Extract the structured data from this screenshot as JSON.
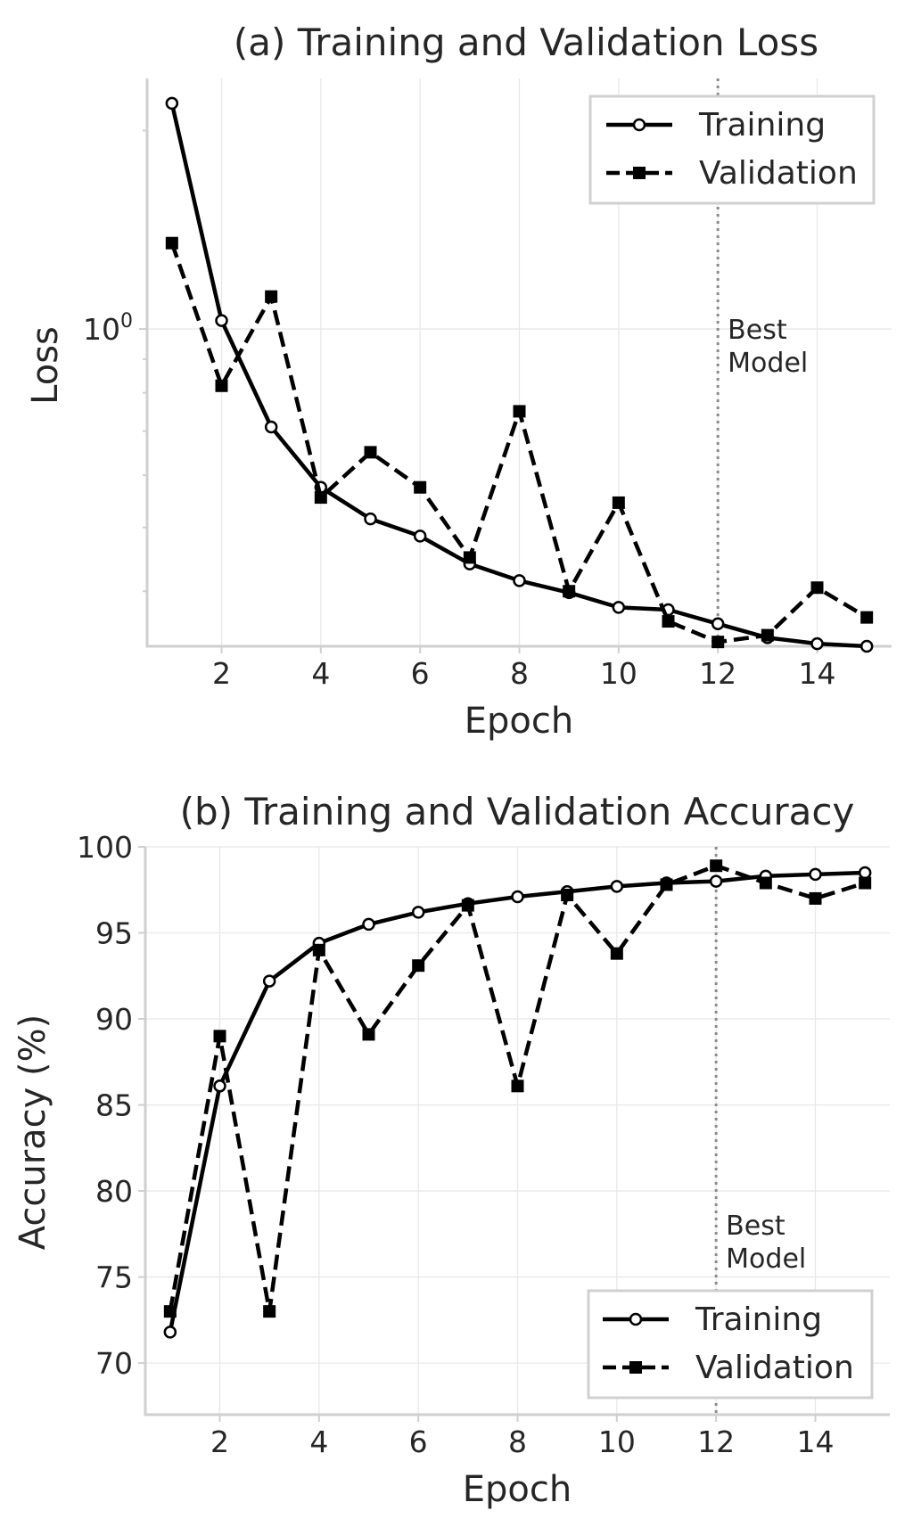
{
  "chart_data": [
    {
      "type": "line",
      "title": "(a) Training and Validation Loss",
      "xlabel": "Epoch",
      "ylabel": "Loss",
      "yscale": "log",
      "x": [
        1,
        2,
        3,
        4,
        5,
        6,
        7,
        8,
        9,
        10,
        11,
        12,
        13,
        14,
        15
      ],
      "xlim": [
        0.5,
        15.5
      ],
      "ylim": [
        0.33,
        2.4
      ],
      "xticks": [
        2,
        4,
        6,
        8,
        10,
        12,
        14
      ],
      "xtick_labels": [
        "2",
        "4",
        "6",
        "8",
        "10",
        "12",
        "14"
      ],
      "ytick_major": [
        1
      ],
      "ytick_major_labels": [
        "10",
        "0"
      ],
      "ytick_minor": [
        0.4,
        0.5,
        0.6,
        0.7,
        0.8,
        0.9,
        2
      ],
      "grid": true,
      "legend_placement": "top-right",
      "series": [
        {
          "name": "Training",
          "style": "solid",
          "marker": "circle",
          "color": "#000000",
          "values": [
            2.2,
            1.03,
            0.71,
            0.575,
            0.515,
            0.485,
            0.44,
            0.415,
            0.398,
            0.378,
            0.375,
            0.357,
            0.34,
            0.333,
            0.33
          ]
        },
        {
          "name": "Validation",
          "style": "dashed",
          "marker": "square",
          "color": "#000000",
          "values": [
            1.35,
            0.82,
            1.12,
            0.555,
            0.65,
            0.575,
            0.45,
            0.75,
            0.4,
            0.545,
            0.36,
            0.335,
            0.343,
            0.405,
            0.365
          ]
        }
      ],
      "annotation": {
        "x": 12,
        "lines": [
          "Best",
          "Model"
        ]
      }
    },
    {
      "type": "line",
      "title": "(b) Training and Validation Accuracy",
      "xlabel": "Epoch",
      "ylabel": "Accuracy (%)",
      "x": [
        1,
        2,
        3,
        4,
        5,
        6,
        7,
        8,
        9,
        10,
        11,
        12,
        13,
        14,
        15
      ],
      "xlim": [
        0.5,
        15.5
      ],
      "ylim": [
        67,
        100
      ],
      "xticks": [
        2,
        4,
        6,
        8,
        10,
        12,
        14
      ],
      "xtick_labels": [
        "2",
        "4",
        "6",
        "8",
        "10",
        "12",
        "14"
      ],
      "yticks": [
        70,
        75,
        80,
        85,
        90,
        95,
        100
      ],
      "ytick_labels": [
        "70",
        "75",
        "80",
        "85",
        "90",
        "95",
        "100"
      ],
      "grid": true,
      "legend_placement": "bottom-right",
      "series": [
        {
          "name": "Training",
          "style": "solid",
          "marker": "circle",
          "color": "#000000",
          "values": [
            71.8,
            86.1,
            92.2,
            94.4,
            95.5,
            96.2,
            96.7,
            97.1,
            97.4,
            97.7,
            97.9,
            98.0,
            98.3,
            98.4,
            98.5
          ]
        },
        {
          "name": "Validation",
          "style": "dashed",
          "marker": "square",
          "color": "#000000",
          "values": [
            73.0,
            89.0,
            73.0,
            94.0,
            89.1,
            93.1,
            96.6,
            86.1,
            97.2,
            93.8,
            97.8,
            98.9,
            97.9,
            97.0,
            97.9
          ]
        }
      ],
      "annotation": {
        "x": 12,
        "lines": [
          "Best",
          "Model"
        ]
      }
    }
  ]
}
